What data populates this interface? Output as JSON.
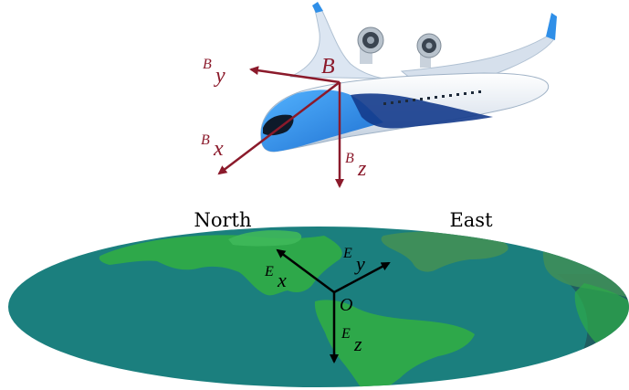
{
  "directions": {
    "north": "North",
    "east": "East"
  },
  "body_frame": {
    "origin_label": "B",
    "x_axis": {
      "superscript": "B",
      "subscript": "x"
    },
    "y_axis": {
      "superscript": "B",
      "subscript": "y"
    },
    "z_axis": {
      "superscript": "B",
      "subscript": "z"
    },
    "color": "#8B1A2B"
  },
  "earth_frame": {
    "origin_label": "O",
    "x_axis": {
      "superscript": "E",
      "subscript": "x"
    },
    "y_axis": {
      "superscript": "E",
      "subscript": "y"
    },
    "z_axis": {
      "superscript": "E",
      "subscript": "z"
    },
    "color": "#000000"
  },
  "colors": {
    "ocean": "#1B7F7E",
    "land": "#2EA84A",
    "land_dark": "#3E8E5A",
    "shadow": "#2D5B63",
    "aircraft_body": "#E8EEF6",
    "aircraft_blue": "#2F8FE8",
    "aircraft_dark_blue": "#143B8C"
  }
}
